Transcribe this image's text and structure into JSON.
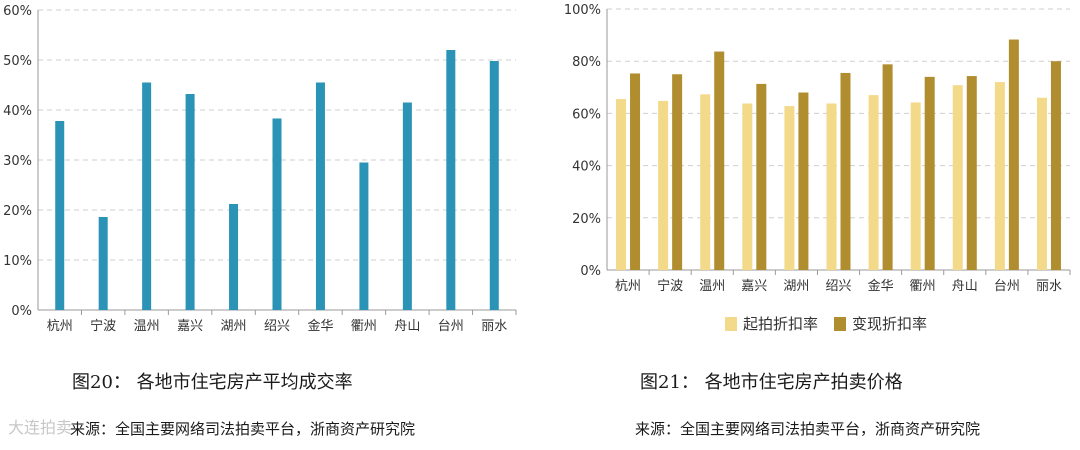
{
  "chart_data": [
    {
      "type": "bar",
      "categories": [
        "杭州",
        "宁波",
        "温州",
        "嘉兴",
        "湖州",
        "绍兴",
        "金华",
        "衢州",
        "舟山",
        "台州",
        "丽水"
      ],
      "values": [
        37.8,
        18.6,
        45.5,
        43.2,
        21.2,
        38.3,
        45.5,
        29.5,
        41.5,
        52.0,
        49.8
      ],
      "ylim": [
        0,
        60
      ],
      "yticks": [
        "0%",
        "10%",
        "20%",
        "30%",
        "40%",
        "50%",
        "60%"
      ],
      "grid": true,
      "bar_color": "#2a93b6",
      "caption": "图20：   各地市住宅房产平均成交率",
      "source": "来源：全国主要网络司法拍卖平台，浙商资产研究院"
    },
    {
      "type": "bar",
      "categories": [
        "杭州",
        "宁波",
        "温州",
        "嘉兴",
        "湖州",
        "绍兴",
        "金华",
        "衢州",
        "舟山",
        "台州",
        "丽水"
      ],
      "series": [
        {
          "name": "起拍折扣率",
          "color": "#f3d98a",
          "values": [
            65.5,
            64.8,
            67.3,
            63.8,
            62.8,
            63.8,
            67.0,
            64.2,
            70.8,
            72.0,
            66.0
          ]
        },
        {
          "name": "变现折扣率",
          "color": "#b08d2e",
          "values": [
            75.3,
            75.0,
            83.7,
            71.3,
            68.0,
            75.5,
            78.8,
            74.0,
            74.3,
            88.3,
            80.0
          ]
        }
      ],
      "ylim": [
        0,
        100
      ],
      "yticks": [
        "0%",
        "20%",
        "40%",
        "60%",
        "80%",
        "100%"
      ],
      "grid": true,
      "legend": "bottom",
      "caption": "图21：   各地市住宅房产拍卖价格",
      "source": "来源：全国主要网络司法拍卖平台，浙商资产研究院"
    }
  ],
  "watermark": "大连拍卖"
}
